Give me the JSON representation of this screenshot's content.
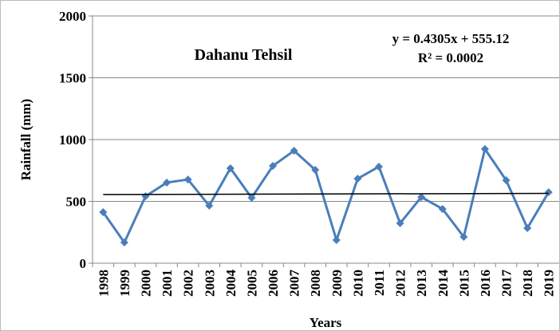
{
  "chart_data": {
    "type": "line",
    "title": "Dahanu Tehsil",
    "annotations": [
      "y = 0.4305x + 555.12",
      "R² = 0.0002"
    ],
    "xlabel": "Years",
    "ylabel": "Rainfall (mm)",
    "categories": [
      "1998",
      "1999",
      "2000",
      "2001",
      "2002",
      "2003",
      "2004",
      "2005",
      "2006",
      "2007",
      "2008",
      "2009",
      "2010",
      "2011",
      "2012",
      "2013",
      "2014",
      "2015",
      "2016",
      "2017",
      "2018",
      "2019"
    ],
    "series": [
      {
        "name": "Rainfall",
        "color": "#4a7ebb",
        "values": [
          413,
          168,
          542,
          652,
          677,
          465,
          768,
          529,
          787,
          910,
          755,
          187,
          684,
          781,
          323,
          535,
          439,
          213,
          923,
          671,
          284,
          574
        ]
      }
    ],
    "trend": {
      "slope": 0.4305,
      "intercept": 555.12,
      "color": "#000000"
    },
    "ylim": [
      0,
      2000
    ],
    "yticks": [
      0,
      500,
      1000,
      1500,
      2000
    ],
    "grid": true
  }
}
